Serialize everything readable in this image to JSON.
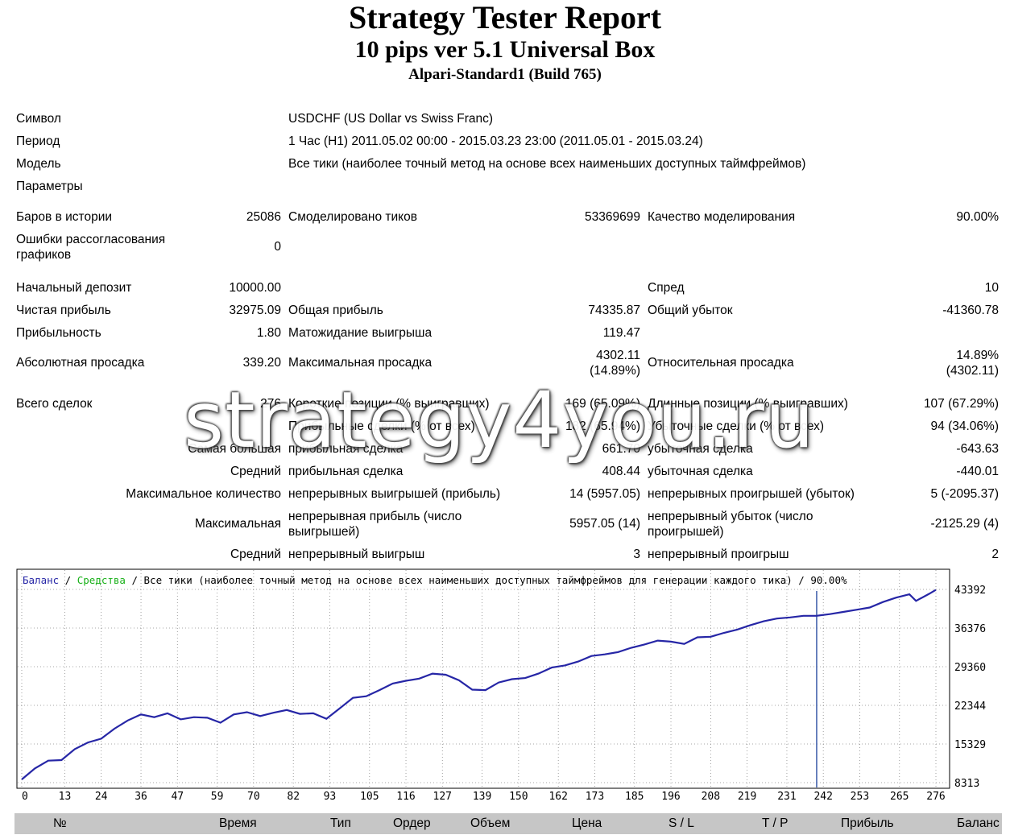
{
  "header": {
    "title": "Strategy Tester Report",
    "expert": "10 pips ver 5.1 Universal Box",
    "server": "Alpari-Standard1 (Build 765)"
  },
  "info": {
    "symbol_label": "Символ",
    "symbol_value": "USDCHF (US Dollar vs Swiss Franc)",
    "period_label": "Период",
    "period_value": "1 Час (H1) 2011.05.02 00:00 - 2015.03.23 23:00 (2011.05.01 - 2015.03.24)",
    "model_label": "Модель",
    "model_value": "Все тики (наиболее точный метод на основе всех наименьших доступных таймфреймов)",
    "params_label": "Параметры"
  },
  "stats": {
    "bars_label": "Баров в истории",
    "bars_value": "25086",
    "ticks_label": "Смоделировано тиков",
    "ticks_value": "53369699",
    "quality_label": "Качество моделирования",
    "quality_value": "90.00%",
    "mismatch_label_1": "Ошибки рассогласования",
    "mismatch_label_2": "графиков",
    "mismatch_value": "0",
    "deposit_label": "Начальный депозит",
    "deposit_value": "10000.00",
    "spread_label": "Спред",
    "spread_value": "10",
    "net_label": "Чистая прибыль",
    "net_value": "32975.09",
    "gross_profit_label": "Общая прибыль",
    "gross_profit_value": "74335.87",
    "gross_loss_label": "Общий убыток",
    "gross_loss_value": "-41360.78",
    "pf_label": "Прибыльность",
    "pf_value": "1.80",
    "expected_label": "Матожидание выигрыша",
    "expected_value": "119.47",
    "abs_dd_label": "Абсолютная просадка",
    "abs_dd_value": "339.20",
    "max_dd_label": "Максимальная просадка",
    "max_dd_value_1": "4302.11",
    "max_dd_value_2": "(14.89%)",
    "rel_dd_label": "Относительная просадка",
    "rel_dd_value_1": "14.89%",
    "rel_dd_value_2": "(4302.11)",
    "total_label": "Всего сделок",
    "total_value": "276",
    "short_label": "Короткие позиции (% выигравших)",
    "short_value": "169 (65.09%)",
    "long_label": "Длинные позиции (% выигравших)",
    "long_value": "107 (67.29%)",
    "profit_trades_label": "Прибыльные сделки (% от всех)",
    "profit_trades_value": "182 (65.94%)",
    "loss_trades_label": "Убыточные сделки (% от всех)",
    "loss_trades_value": "94 (34.06%)",
    "largest_label": "Самая большая",
    "largest_profit_label": "прибыльная сделка",
    "largest_profit_value": "661.70",
    "largest_loss_label": "убыточная сделка",
    "largest_loss_value": "-643.63",
    "average_label": "Средний",
    "avg_profit_label": "прибыльная сделка",
    "avg_profit_value": "408.44",
    "avg_loss_label": "убыточная сделка",
    "avg_loss_value": "-440.01",
    "maxcount_label": "Максимальное количество",
    "cons_wins_label": "непрерывных выигрышей (прибыль)",
    "cons_wins_value": "14 (5957.05)",
    "cons_losses_label": "непрерывных проигрышей (убыток)",
    "cons_losses_value": "5 (-2095.37)",
    "maximal_label": "Максимальная",
    "cons_profit_label_1": "непрерывная прибыль (число",
    "cons_profit_label_2": "выигрышей)",
    "cons_profit_value": "5957.05 (14)",
    "cons_loss_label_1": "непрерывный убыток (число",
    "cons_loss_label_2": "проигрышей)",
    "cons_loss_value": "-2125.29 (4)",
    "avg_cons_label": "Средний",
    "avg_cons_win_label": "непрерывный выигрыш",
    "avg_cons_win_value": "3",
    "avg_cons_loss_label": "непрерывный проигрыш",
    "avg_cons_loss_value": "2"
  },
  "watermark": "strategy4you.ru",
  "colors": {
    "balance": "#2626a6",
    "equity": "#18b018",
    "grid": "#8a8a8a",
    "marker": "#3a5aa8",
    "table_header": "#c6c6c6"
  },
  "chart_data": {
    "type": "line",
    "legend": {
      "balance": "Баланс",
      "sep1": " / ",
      "equity": "Средства",
      "rest": " / Все тики (наиболее точный метод на основе всех наименьших доступных таймфреймов для генерации каждого тика) / 90.00%"
    },
    "x_ticks": [
      0,
      13,
      24,
      36,
      47,
      59,
      70,
      82,
      93,
      105,
      116,
      127,
      139,
      150,
      162,
      173,
      185,
      196,
      208,
      219,
      231,
      242,
      253,
      265,
      276
    ],
    "y_ticks": [
      8313,
      15329,
      22344,
      29360,
      36376,
      43392
    ],
    "xlim": [
      0,
      276
    ],
    "ylim": [
      8313,
      43392
    ],
    "marker_x": 240,
    "series": [
      {
        "name": "Баланс",
        "x": [
          0,
          4,
          8,
          12,
          16,
          20,
          24,
          28,
          32,
          36,
          40,
          44,
          48,
          52,
          56,
          60,
          64,
          68,
          72,
          76,
          80,
          84,
          88,
          92,
          96,
          100,
          104,
          108,
          112,
          116,
          120,
          124,
          128,
          132,
          136,
          140,
          144,
          148,
          152,
          156,
          160,
          164,
          168,
          172,
          176,
          180,
          184,
          188,
          192,
          196,
          200,
          204,
          208,
          212,
          216,
          220,
          224,
          228,
          232,
          236,
          240,
          244,
          248,
          252,
          256,
          260,
          264,
          268,
          270,
          274,
          276
        ],
        "values": [
          8900,
          10900,
          12300,
          12400,
          14400,
          15600,
          16300,
          18100,
          19600,
          20700,
          20200,
          20900,
          19800,
          20200,
          20100,
          19200,
          20700,
          21100,
          20400,
          21000,
          21500,
          20800,
          20900,
          19900,
          21800,
          23700,
          24000,
          25100,
          26300,
          26800,
          27200,
          28100,
          27900,
          26900,
          25200,
          25100,
          26500,
          27100,
          27300,
          28100,
          29200,
          29600,
          30300,
          31300,
          31600,
          32000,
          32800,
          33400,
          34100,
          33900,
          33500,
          34700,
          34800,
          35500,
          36100,
          36900,
          37600,
          38100,
          38300,
          38600,
          38600,
          38900,
          39300,
          39700,
          40100,
          41100,
          41900,
          42500,
          41300,
          42600,
          43300
        ]
      }
    ]
  },
  "table_header": {
    "no": "№",
    "time": "Время",
    "type": "Тип",
    "order": "Ордер",
    "volume": "Объем",
    "price": "Цена",
    "sl": "S / L",
    "tp": "T / P",
    "profit": "Прибыль",
    "balance": "Баланс"
  }
}
